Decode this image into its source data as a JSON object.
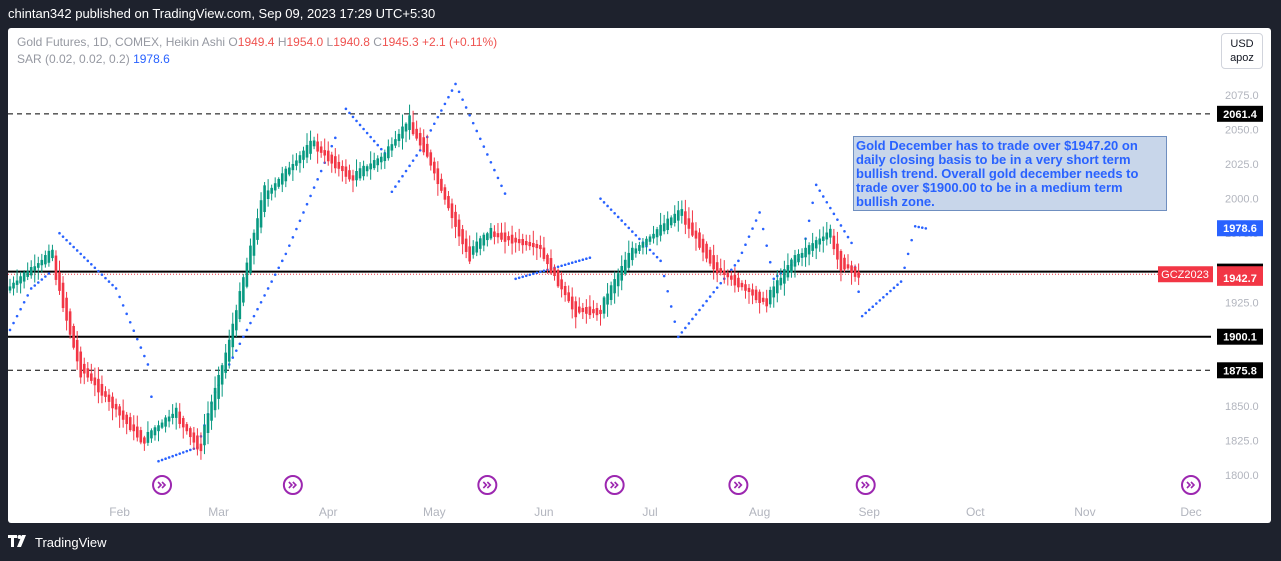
{
  "header": {
    "publisher_text": "chintan342 published on TradingView.com, Sep 09, 2023 17:29 UTC+5:30"
  },
  "legend": {
    "instrument": "Gold Futures, 1D, COMEX, Heikin Ashi",
    "o_label": "O",
    "o_value": "1949.4",
    "h_label": "H",
    "h_value": "1954.0",
    "l_label": "L",
    "l_value": "1940.8",
    "c_label": "C",
    "c_value": "1945.3",
    "change": "+2.1 (+0.11%)",
    "indicator_label": "SAR (0.02, 0.02, 0.2)",
    "indicator_value": "1978.6"
  },
  "currency": {
    "code": "USD",
    "unit": "apoz"
  },
  "annotation": {
    "text": "Gold December has to trade over $1947.20 on daily closing basis to be in a very short term bullish trend. Overall gold december needs to trade over $1900.00 to be in a medium term bullish zone."
  },
  "footer": {
    "brand": "TradingView"
  },
  "colors": {
    "up": "#089981",
    "down": "#f23645",
    "sar": "#2962ff",
    "bg_outer": "#1e222d",
    "chart_bg": "#ffffff",
    "event_icon": "#9c27b0"
  },
  "chart_data": {
    "type": "candlestick",
    "series_name": "Gold Futures, 1D, COMEX, Heikin Ashi",
    "ylim": [
      1787,
      2096
    ],
    "y_ticks": [
      1800,
      1825,
      1850,
      1875,
      1900,
      1925,
      1950,
      1975,
      2000,
      2025,
      2050,
      2075
    ],
    "y_tick_labels": [
      "1800.0",
      "1825.0",
      "1850.0",
      "1875.0",
      "1900.0",
      "1925.0",
      "1950.0",
      "1975.0",
      "2000.0",
      "2025.0",
      "2050.0",
      "2075.0"
    ],
    "x_range_days": [
      0,
      336
    ],
    "x_months": [
      {
        "label": "Feb",
        "day": 31
      },
      {
        "label": "Mar",
        "day": 59
      },
      {
        "label": "Apr",
        "day": 90
      },
      {
        "label": "May",
        "day": 120
      },
      {
        "label": "Jun",
        "day": 151
      },
      {
        "label": "Jul",
        "day": 181
      },
      {
        "label": "Aug",
        "day": 212
      },
      {
        "label": "Sep",
        "day": 243
      },
      {
        "label": "Oct",
        "day": 273
      },
      {
        "label": "Nov",
        "day": 304
      },
      {
        "label": "Dec",
        "day": 334
      }
    ],
    "price_lines": [
      {
        "value": 2061.4,
        "style": "dashed",
        "label": "2061.4"
      },
      {
        "value": 1947.2,
        "style": "solid",
        "label": "1947.2"
      },
      {
        "value": 1900.1,
        "style": "solid",
        "label": "1900.1"
      },
      {
        "value": 1875.8,
        "style": "dashed",
        "label": "1875.8"
      }
    ],
    "badges": [
      {
        "value": 1978.6,
        "label": "1978.6",
        "bg": "#2962ff"
      },
      {
        "value": 1945.3,
        "label": "1945.3",
        "bg": "#f23645"
      },
      {
        "value": 1942.7,
        "label": "1942.7",
        "bg": "#f23645"
      }
    ],
    "symbol_tag": {
      "label": "GCZ2023",
      "value": 1945.3
    },
    "event_days": [
      43,
      80,
      135,
      171,
      206,
      242,
      334
    ],
    "key_points": [
      {
        "day": 0,
        "value": 1935
      },
      {
        "day": 12,
        "value": 1960
      },
      {
        "day": 20,
        "value": 1880
      },
      {
        "day": 38,
        "value": 1825
      },
      {
        "day": 47,
        "value": 1845
      },
      {
        "day": 54,
        "value": 1820
      },
      {
        "day": 62,
        "value": 1890
      },
      {
        "day": 72,
        "value": 2000
      },
      {
        "day": 86,
        "value": 2040
      },
      {
        "day": 97,
        "value": 2015
      },
      {
        "day": 106,
        "value": 2030
      },
      {
        "day": 113,
        "value": 2055
      },
      {
        "day": 118,
        "value": 2035
      },
      {
        "day": 130,
        "value": 1960
      },
      {
        "day": 136,
        "value": 1975
      },
      {
        "day": 150,
        "value": 1965
      },
      {
        "day": 160,
        "value": 1920
      },
      {
        "day": 167,
        "value": 1918
      },
      {
        "day": 176,
        "value": 1960
      },
      {
        "day": 190,
        "value": 1990
      },
      {
        "day": 200,
        "value": 1950
      },
      {
        "day": 214,
        "value": 1925
      },
      {
        "day": 222,
        "value": 1955
      },
      {
        "day": 232,
        "value": 1975
      },
      {
        "day": 235,
        "value": 1955
      },
      {
        "day": 240,
        "value": 1945
      }
    ],
    "sar_points": [
      {
        "day": 0,
        "value": 1905
      },
      {
        "day": 6,
        "value": 1935
      },
      {
        "day": 12,
        "value": 1948
      },
      {
        "day": 14,
        "value": 1975
      },
      {
        "day": 30,
        "value": 1935
      },
      {
        "day": 39,
        "value": 1880
      },
      {
        "day": 42,
        "value": 1810
      },
      {
        "day": 53,
        "value": 1820
      },
      {
        "day": 58,
        "value": 1860
      },
      {
        "day": 67,
        "value": 1905
      },
      {
        "day": 78,
        "value": 1960
      },
      {
        "day": 93,
        "value": 2050
      },
      {
        "day": 95,
        "value": 2065
      },
      {
        "day": 107,
        "value": 2030
      },
      {
        "day": 108,
        "value": 2005
      },
      {
        "day": 116,
        "value": 2035
      },
      {
        "day": 126,
        "value": 2083
      },
      {
        "day": 141,
        "value": 1998
      },
      {
        "day": 143,
        "value": 1942
      },
      {
        "day": 165,
        "value": 1958
      },
      {
        "day": 167,
        "value": 2000
      },
      {
        "day": 184,
        "value": 1955
      },
      {
        "day": 189,
        "value": 1900
      },
      {
        "day": 206,
        "value": 1955
      },
      {
        "day": 212,
        "value": 1990
      },
      {
        "day": 216,
        "value": 1942
      },
      {
        "day": 224,
        "value": 1958
      },
      {
        "day": 228,
        "value": 2010
      },
      {
        "day": 238,
        "value": 1968
      },
      {
        "day": 241,
        "value": 1915
      },
      {
        "day": 252,
        "value": 1940
      },
      {
        "day": 256,
        "value": 1980
      },
      {
        "day": 260,
        "value": 1978
      }
    ]
  }
}
